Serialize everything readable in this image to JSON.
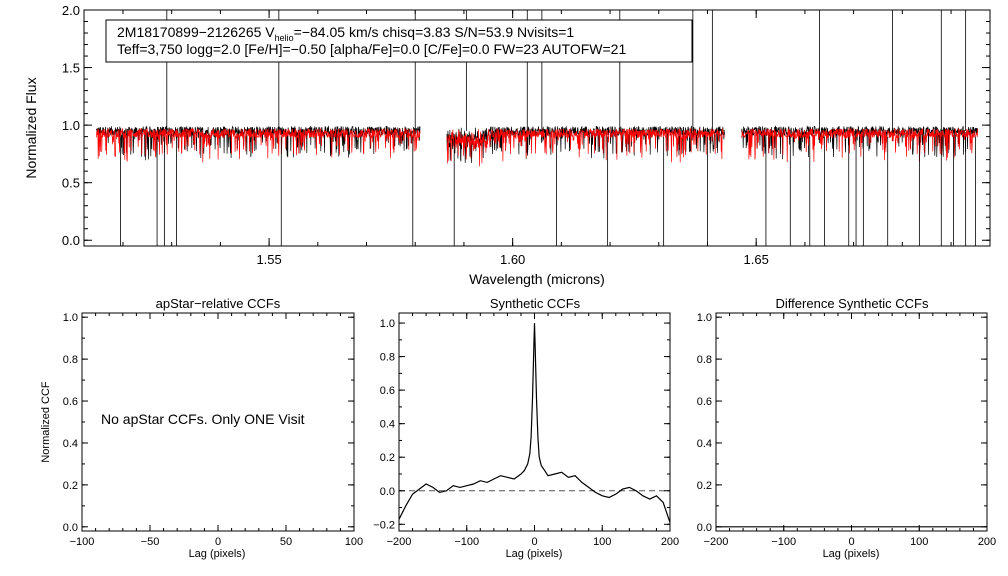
{
  "chart_data": [
    {
      "type": "line",
      "panel": "spectrum",
      "xlabel": "Wavelength (microns)",
      "ylabel": "Normalized Flux",
      "xlim": [
        1.512,
        1.698
      ],
      "ylim": [
        -0.05,
        2.0
      ],
      "xticks": [
        1.55,
        1.6,
        1.65
      ],
      "xtick_labels": [
        "1.55",
        "1.60",
        "1.65"
      ],
      "yticks": [
        0.0,
        0.5,
        1.0,
        1.5,
        2.0
      ],
      "ytick_labels": [
        "0.0",
        "0.5",
        "1.0",
        "1.5",
        "2.0"
      ],
      "info_box": {
        "line1_prefix": "2M18170899−2126265  V",
        "line1_sub": "helio",
        "line1_suffix": "=−84.05 km/s  chisq=3.83  S/N=53.9  Nvisits=1",
        "line2": "Teff=3,750 logg=2.0 [Fe/H]=−0.50 [alpha/Fe]=0.0 [C/Fe]=0.0 FW=23 AUTOFW=21"
      },
      "chips": [
        [
          1.5145,
          1.581
        ],
        [
          1.5865,
          1.6435
        ],
        [
          1.647,
          1.6955
        ]
      ],
      "series": [
        {
          "name": "observed",
          "color": "#000000",
          "level": 0.95
        },
        {
          "name": "model",
          "color": "#ff0000",
          "level": 0.93
        }
      ],
      "spikes_up": [
        1.529,
        1.552,
        1.58,
        1.5905,
        1.603,
        1.606,
        1.622,
        1.637,
        1.641,
        1.663,
        1.678,
        1.688,
        1.693
      ],
      "spikes_down": [
        1.5195,
        1.527,
        1.5285,
        1.531,
        1.5525,
        1.5795,
        1.588,
        1.609,
        1.6195,
        1.631,
        1.64,
        1.652,
        1.657,
        1.661,
        1.664,
        1.669,
        1.6705,
        1.672,
        1.677,
        1.6835,
        1.688,
        1.6905,
        1.693,
        1.695
      ]
    },
    {
      "type": "line",
      "panel": "apstar-relative",
      "title": "apStar−relative CCFs",
      "xlabel": "Lag (pixels)",
      "ylabel": "Normalized CCF",
      "xlim": [
        -100,
        100
      ],
      "ylim": [
        -0.02,
        1.02
      ],
      "xticks": [
        -100,
        -50,
        0,
        50,
        100
      ],
      "xtick_labels": [
        "−100",
        "−50",
        "0",
        "50",
        "100"
      ],
      "yticks": [
        0.0,
        0.2,
        0.4,
        0.6,
        0.8,
        1.0
      ],
      "ytick_labels": [
        "0.0",
        "0.2",
        "0.4",
        "0.6",
        "0.8",
        "1.0"
      ],
      "annotation": "No apStar CCFs.  Only ONE Visit",
      "series": []
    },
    {
      "type": "line",
      "panel": "synthetic",
      "title": "Synthetic CCFs",
      "xlabel": "Lag (pixels)",
      "xlim": [
        -200,
        200
      ],
      "ylim": [
        -0.24,
        1.06
      ],
      "xticks": [
        -200,
        -100,
        0,
        100,
        200
      ],
      "xtick_labels": [
        "−200",
        "−100",
        "0",
        "100",
        "200"
      ],
      "yticks": [
        -0.2,
        0.0,
        0.2,
        0.4,
        0.6,
        0.8,
        1.0
      ],
      "ytick_labels": [
        "−0.2",
        "0.0",
        "0.2",
        "0.4",
        "0.6",
        "0.8",
        "1.0"
      ],
      "reference_line": 0.0,
      "series": [
        {
          "name": "ccf",
          "color": "#000000",
          "x": [
            -200,
            -190,
            -180,
            -170,
            -160,
            -150,
            -140,
            -130,
            -120,
            -110,
            -100,
            -90,
            -80,
            -70,
            -60,
            -50,
            -40,
            -30,
            -20,
            -15,
            -10,
            -7,
            -5,
            -3,
            -1,
            0,
            1,
            3,
            5,
            7,
            10,
            15,
            20,
            30,
            40,
            50,
            60,
            70,
            80,
            90,
            100,
            110,
            120,
            130,
            140,
            150,
            160,
            170,
            180,
            190,
            195,
            200
          ],
          "y": [
            -0.17,
            -0.09,
            -0.02,
            0.01,
            0.04,
            0.02,
            -0.01,
            0.0,
            0.03,
            0.02,
            0.03,
            0.04,
            0.06,
            0.05,
            0.07,
            0.09,
            0.08,
            0.07,
            0.1,
            0.12,
            0.16,
            0.22,
            0.32,
            0.55,
            0.85,
            1.0,
            0.85,
            0.55,
            0.32,
            0.2,
            0.15,
            0.12,
            0.09,
            0.1,
            0.11,
            0.08,
            0.09,
            0.05,
            0.02,
            -0.01,
            -0.03,
            -0.04,
            -0.02,
            0.01,
            0.02,
            0.0,
            -0.03,
            -0.05,
            -0.03,
            -0.07,
            -0.13,
            -0.19
          ]
        }
      ]
    },
    {
      "type": "line",
      "panel": "difference-synthetic",
      "title": "Difference Synthetic CCFs",
      "xlabel": "Lag (pixels)",
      "xlim": [
        -200,
        200
      ],
      "ylim": [
        -0.02,
        1.02
      ],
      "xticks": [
        -200,
        -100,
        0,
        100,
        200
      ],
      "xtick_labels": [
        "−200",
        "−100",
        "0",
        "100",
        "200"
      ],
      "yticks": [
        0.0,
        0.2,
        0.4,
        0.6,
        0.8,
        1.0
      ],
      "ytick_labels": [
        "0.0",
        "0.2",
        "0.4",
        "0.6",
        "0.8",
        "1.0"
      ],
      "series": [
        {
          "name": "difference",
          "color": "#000000",
          "x": [
            -200,
            200
          ],
          "y": [
            0.0,
            0.0
          ]
        }
      ]
    }
  ]
}
